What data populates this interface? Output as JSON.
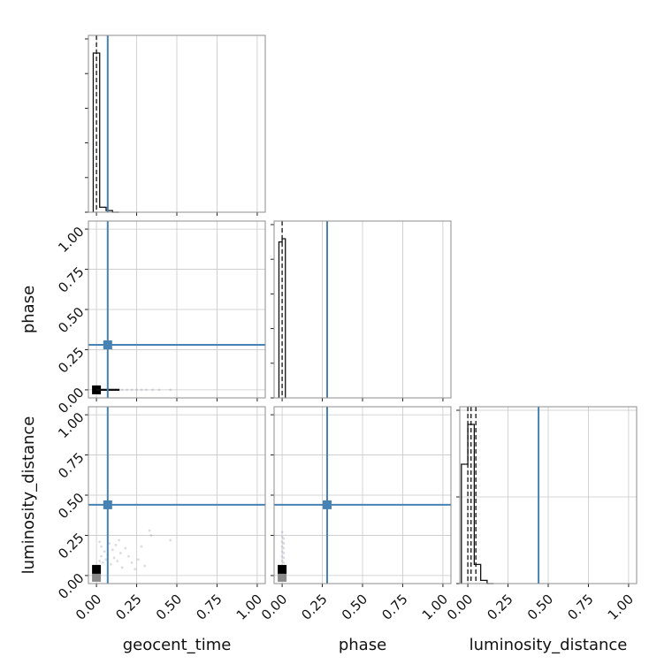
{
  "chart_data": {
    "type": "scatter",
    "subtype": "corner-plot",
    "parameters": [
      "geocent_time",
      "phase",
      "luminosity_distance"
    ],
    "tick_values": [
      0.0,
      0.25,
      0.5,
      0.75,
      1.0
    ],
    "tick_labels": [
      "0.00",
      "0.25",
      "0.50",
      "0.75",
      "1.00"
    ],
    "axis_range": [
      -0.05,
      1.05
    ],
    "grid": true,
    "colors": {
      "truth": "#4682b4",
      "histogram": "#111111",
      "density": "#000000",
      "samples": "#9a9aa8"
    },
    "truths": {
      "geocent_time": 0.07,
      "phase": 0.28,
      "luminosity_distance": 0.44
    },
    "histograms": {
      "geocent_time": {
        "edges": [
          -0.02,
          0.02,
          0.06,
          0.1,
          0.14
        ],
        "heights": [
          0.96,
          0.03,
          0.01,
          0.0
        ],
        "quantiles": [
          0.0
        ]
      },
      "phase": {
        "edges": [
          -0.02,
          0.0,
          0.02
        ],
        "heights": [
          0.98,
          1.0
        ],
        "quantiles": [
          0.0
        ]
      },
      "luminosity_distance": {
        "edges": [
          -0.04,
          0.0,
          0.04,
          0.08,
          0.12,
          0.16
        ],
        "heights": [
          0.75,
          1.0,
          0.12,
          0.02,
          0.0
        ],
        "quantiles": [
          0.0,
          0.02,
          0.05
        ]
      }
    },
    "pairs": [
      {
        "x": "geocent_time",
        "y": "phase",
        "points": [
          [
            0.0,
            0.0
          ],
          [
            0.02,
            0.0
          ],
          [
            0.04,
            0.0
          ],
          [
            0.06,
            0.0
          ],
          [
            0.08,
            0.0
          ],
          [
            0.1,
            0.0
          ],
          [
            0.12,
            0.0
          ],
          [
            0.14,
            0.0
          ],
          [
            0.16,
            0.0
          ],
          [
            0.19,
            0.0
          ],
          [
            0.22,
            0.0
          ],
          [
            0.25,
            0.0
          ],
          [
            0.28,
            0.0
          ],
          [
            0.31,
            0.0
          ],
          [
            0.35,
            0.0
          ],
          [
            0.39,
            0.0
          ],
          [
            0.46,
            0.0
          ]
        ]
      },
      {
        "x": "geocent_time",
        "y": "luminosity_distance",
        "points": [
          [
            0.01,
            0.06
          ],
          [
            0.02,
            0.09
          ],
          [
            0.03,
            0.12
          ],
          [
            0.04,
            0.08
          ],
          [
            0.05,
            0.15
          ],
          [
            0.03,
            0.18
          ],
          [
            0.02,
            0.21
          ],
          [
            0.06,
            0.1
          ],
          [
            0.07,
            0.13
          ],
          [
            0.08,
            0.2
          ],
          [
            0.09,
            0.07
          ],
          [
            0.1,
            0.16
          ],
          [
            0.11,
            0.11
          ],
          [
            0.12,
            0.19
          ],
          [
            0.13,
            0.09
          ],
          [
            0.14,
            0.22
          ],
          [
            0.15,
            0.14
          ],
          [
            0.16,
            0.05
          ],
          [
            0.18,
            0.17
          ],
          [
            0.2,
            0.12
          ],
          [
            0.22,
            0.08
          ],
          [
            0.24,
            0.04
          ],
          [
            0.26,
            0.1
          ],
          [
            0.28,
            0.18
          ],
          [
            0.3,
            0.06
          ],
          [
            0.33,
            0.28
          ],
          [
            0.34,
            0.25
          ],
          [
            0.46,
            0.22
          ]
        ]
      },
      {
        "x": "phase",
        "y": "luminosity_distance",
        "points": [
          [
            0.0,
            0.06
          ],
          [
            0.0,
            0.09
          ],
          [
            0.0,
            0.12
          ],
          [
            0.0,
            0.15
          ],
          [
            0.0,
            0.18
          ],
          [
            0.0,
            0.21
          ],
          [
            0.0,
            0.24
          ],
          [
            0.0,
            0.27
          ],
          [
            0.01,
            0.08
          ],
          [
            0.01,
            0.11
          ],
          [
            0.01,
            0.14
          ],
          [
            0.01,
            0.17
          ],
          [
            0.01,
            0.2
          ],
          [
            0.01,
            0.23
          ]
        ]
      }
    ]
  }
}
